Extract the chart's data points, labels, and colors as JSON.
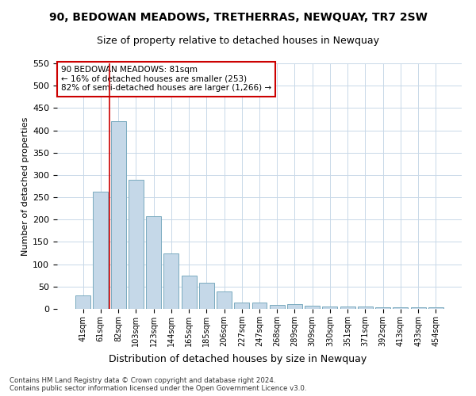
{
  "title1": "90, BEDOWAN MEADOWS, TRETHERRAS, NEWQUAY, TR7 2SW",
  "title2": "Size of property relative to detached houses in Newquay",
  "xlabel": "Distribution of detached houses by size in Newquay",
  "ylabel": "Number of detached properties",
  "categories": [
    "41sqm",
    "61sqm",
    "82sqm",
    "103sqm",
    "123sqm",
    "144sqm",
    "165sqm",
    "185sqm",
    "206sqm",
    "227sqm",
    "247sqm",
    "268sqm",
    "289sqm",
    "309sqm",
    "330sqm",
    "351sqm",
    "371sqm",
    "392sqm",
    "413sqm",
    "433sqm",
    "454sqm"
  ],
  "values": [
    30,
    263,
    420,
    290,
    207,
    125,
    75,
    58,
    39,
    15,
    14,
    9,
    10,
    7,
    5,
    5,
    6,
    4,
    4,
    4,
    4
  ],
  "bar_color": "#c5d8e8",
  "bar_edge_color": "#7aaabf",
  "annotation_text": "90 BEDOWAN MEADOWS: 81sqm\n← 16% of detached houses are smaller (253)\n82% of semi-detached houses are larger (1,266) →",
  "annotation_box_color": "#ffffff",
  "annotation_box_edge_color": "#cc0000",
  "footer_text": "Contains HM Land Registry data © Crown copyright and database right 2024.\nContains public sector information licensed under the Open Government Licence v3.0.",
  "ylim": [
    0,
    550
  ],
  "yticks": [
    0,
    50,
    100,
    150,
    200,
    250,
    300,
    350,
    400,
    450,
    500,
    550
  ],
  "bg_color": "#ffffff",
  "grid_color": "#c8d8e8",
  "title1_fontsize": 10,
  "title2_fontsize": 9,
  "ylabel_fontsize": 8,
  "xlabel_fontsize": 9
}
